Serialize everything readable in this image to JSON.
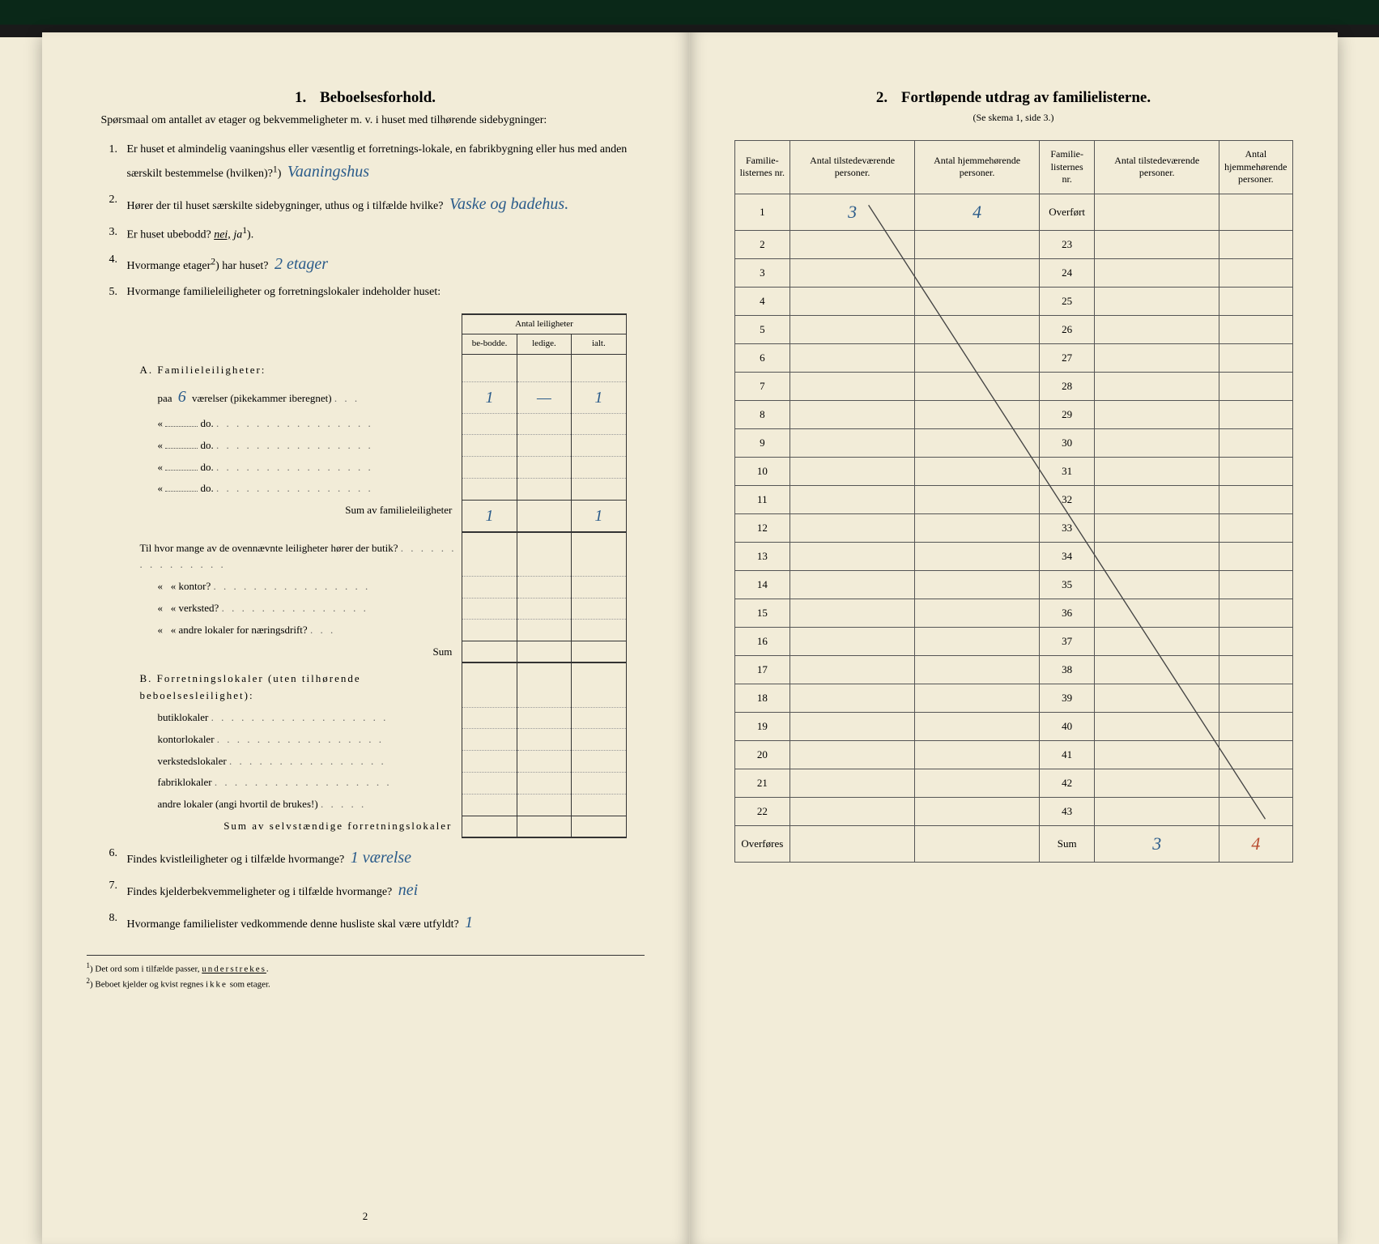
{
  "left": {
    "title_num": "1.",
    "title": "Beboelsesforhold.",
    "intro": "Spørsmaal om antallet av etager og bekvemmeligheter m. v. i huset med tilhørende sidebygninger:",
    "q1_a": "Er huset et almindelig vaaningshus eller væsentlig et forretnings-lokale, en fabrikbygning eller hus med anden særskilt bestemmelse (hvilken)?",
    "q1_sup": "1",
    "q1_ans": "Vaaningshus",
    "q2_a": "Hører der til huset særskilte sidebygninger, uthus og i tilfælde hvilke?",
    "q2_ans": "Vaske og badehus.",
    "q3_a": "Er huset ubebodd?",
    "q3_nei": "nei,",
    "q3_ja": "ja",
    "q3_sup": "1",
    "q4_a": "Hvormange etager",
    "q4_sup": "2",
    "q4_b": "har huset?",
    "q4_ans": "2 etager",
    "q5": "Hvormange familieleiligheter og forretningslokaler indeholder huset:",
    "tbl_head_group": "Antal leiligheter",
    "tbl_head_be": "be-bodde.",
    "tbl_head_ledige": "ledige.",
    "tbl_head_ialt": "ialt.",
    "A_head": "A. Familieleiligheter:",
    "A_paa": "paa",
    "A_paa_val": "6",
    "A_paa_rest": "værelser (pikekammer iberegnet)",
    "A_do": "do.",
    "A_sum": "Sum av familieleiligheter",
    "A_r1_be": "1",
    "A_r1_led": "—",
    "A_r1_ialt": "1",
    "A_sum_be": "1",
    "A_sum_ialt": "1",
    "mid1": "Til hvor mange av de ovennævnte leiligheter hører der butik?",
    "mid2": "kontor?",
    "mid3": "verksted?",
    "mid4": "andre lokaler for næringsdrift?",
    "mid_sum": "Sum",
    "B_head": "B. Forretningslokaler (uten tilhørende beboelsesleilighet):",
    "B_1": "butiklokaler",
    "B_2": "kontorlokaler",
    "B_3": "verkstedslokaler",
    "B_4": "fabriklokaler",
    "B_5": "andre lokaler (angi hvortil de brukes!)",
    "B_sum": "Sum av selvstændige forretningslokaler",
    "q6": "Findes kvistleiligheter og i tilfælde hvormange?",
    "q6_ans": "1 værelse",
    "q7": "Findes kjelderbekvemmeligheter og i tilfælde hvormange?",
    "q7_ans": "nei",
    "q8": "Hvormange familielister vedkommende denne husliste skal være utfyldt?",
    "q8_ans": "1",
    "fn1_num": "1",
    "fn1": "Det ord som i tilfælde passer, understrekes.",
    "fn2_num": "2",
    "fn2": "Beboet kjelder og kvist regnes ikke som etager.",
    "page_num": "2"
  },
  "right": {
    "title_num": "2.",
    "title": "Fortløpende utdrag av familielisterne.",
    "subtitle": "(Se skema 1, side 3.)",
    "h1": "Familie-listernes nr.",
    "h2": "Antal tilstedeværende personer.",
    "h3": "Antal hjemmehørende personer.",
    "overfort": "Overført",
    "overfores": "Overføres",
    "sum": "Sum",
    "r1_nr": "1",
    "r1_tilst": "3",
    "r1_hjem": "4",
    "rows_left": [
      "1",
      "2",
      "3",
      "4",
      "5",
      "6",
      "7",
      "8",
      "9",
      "10",
      "11",
      "12",
      "13",
      "14",
      "15",
      "16",
      "17",
      "18",
      "19",
      "20",
      "21",
      "22"
    ],
    "rows_right": [
      "23",
      "24",
      "25",
      "26",
      "27",
      "28",
      "29",
      "30",
      "31",
      "32",
      "33",
      "34",
      "35",
      "36",
      "37",
      "38",
      "39",
      "40",
      "41",
      "42",
      "43"
    ],
    "sum_tilst": "3",
    "sum_hjem": "4"
  }
}
